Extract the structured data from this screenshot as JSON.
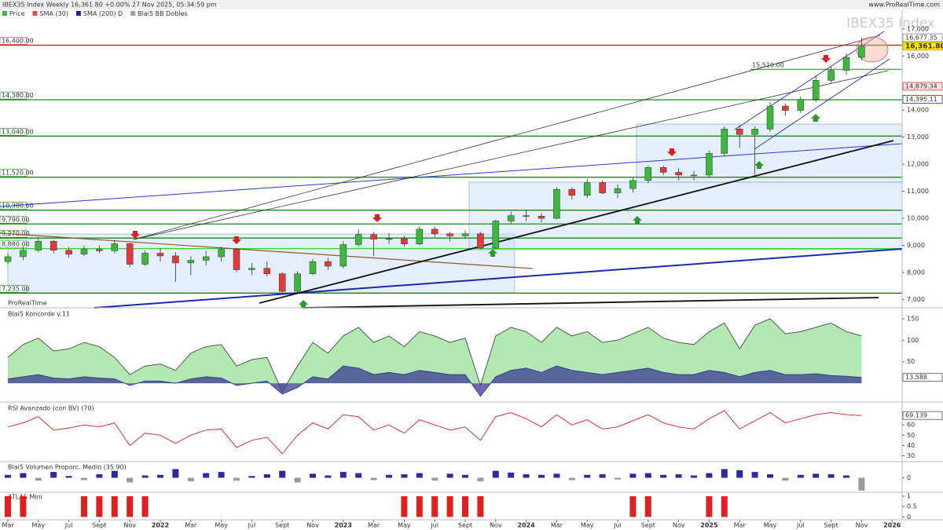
{
  "header": {
    "title": "IBEX35 Index Weekly 16,361.80 +0.00% 27 Nov 2025, 05:34:59 pm",
    "site": "www.ProRealTime.com",
    "branding": "ProRealTime"
  },
  "chart_data": [
    {
      "type": "candlestick",
      "title": "IBEX35 Index",
      "x": [
        "2021-03",
        "2021-04",
        "2021-05",
        "2021-06",
        "2021-07",
        "2021-08",
        "2021-09",
        "2021-10",
        "2021-11",
        "2021-12",
        "2022-01",
        "2022-02",
        "2022-03",
        "2022-04",
        "2022-05",
        "2022-06",
        "2022-07",
        "2022-08",
        "2022-09",
        "2022-10",
        "2022-11",
        "2022-12",
        "2023-01",
        "2023-02",
        "2023-03",
        "2023-04",
        "2023-05",
        "2023-06",
        "2023-07",
        "2023-08",
        "2023-09",
        "2023-10",
        "2023-11",
        "2023-12",
        "2024-01",
        "2024-02",
        "2024-03",
        "2024-04",
        "2024-05",
        "2024-06",
        "2024-07",
        "2024-08",
        "2024-09",
        "2024-10",
        "2024-11",
        "2024-12",
        "2025-01",
        "2025-02",
        "2025-03",
        "2025-04",
        "2025-05",
        "2025-06",
        "2025-07",
        "2025-08",
        "2025-09",
        "2025-10",
        "2025-11"
      ],
      "open": [
        8400,
        8580,
        8815,
        9150,
        8820,
        8675,
        8850,
        8800,
        9060,
        8300,
        8710,
        8610,
        8350,
        8450,
        8580,
        8850,
        8100,
        8150,
        7950,
        7300,
        7950,
        8400,
        8230,
        9030,
        9400,
        9230,
        9250,
        9050,
        9600,
        9430,
        9350,
        9430,
        8900,
        9900,
        10100,
        10080,
        10000,
        11070,
        10850,
        11320,
        10940,
        11100,
        11400,
        11880,
        11700,
        11600,
        11600,
        12400,
        13300,
        13100,
        13300,
        14150,
        13990,
        14400,
        15100,
        15470,
        15950
      ],
      "high": [
        8700,
        8950,
        9300,
        9200,
        8950,
        9000,
        9000,
        9200,
        9100,
        8800,
        8900,
        8750,
        8600,
        8800,
        8950,
        8900,
        8350,
        8400,
        8000,
        8050,
        8500,
        8550,
        9150,
        9600,
        9500,
        9450,
        9350,
        9700,
        9700,
        9500,
        9550,
        9500,
        9950,
        10250,
        10300,
        10200,
        11150,
        11150,
        11450,
        11400,
        11250,
        11500,
        11950,
        11950,
        11850,
        11750,
        12500,
        13400,
        13450,
        13400,
        14300,
        14250,
        14500,
        15300,
        15600,
        16100,
        16677.35
      ],
      "low": [
        8300,
        8450,
        8750,
        8700,
        8550,
        8600,
        8700,
        8700,
        8200,
        8250,
        8400,
        7650,
        7900,
        8250,
        8400,
        8000,
        7900,
        7850,
        7250,
        7200,
        7900,
        8100,
        8150,
        8950,
        8600,
        9050,
        8950,
        9000,
        9300,
        9150,
        9250,
        8850,
        8850,
        9800,
        9900,
        9850,
        9950,
        10700,
        10750,
        10900,
        10750,
        10950,
        11300,
        11600,
        11400,
        11400,
        11500,
        12300,
        12600,
        11600,
        13200,
        13800,
        13900,
        14300,
        15000,
        15300,
        15850
      ],
      "close": [
        8580,
        8815,
        9150,
        8820,
        8675,
        8850,
        8800,
        9060,
        8300,
        8710,
        8610,
        8350,
        8450,
        8580,
        8850,
        8100,
        8150,
        7950,
        7300,
        7950,
        8400,
        8230,
        9030,
        9400,
        9230,
        9250,
        9050,
        9600,
        9430,
        9350,
        9430,
        8900,
        9900,
        10100,
        10080,
        10000,
        11070,
        10850,
        11320,
        10940,
        11100,
        11400,
        11880,
        11700,
        11600,
        11600,
        12400,
        13300,
        13100,
        13300,
        14150,
        13990,
        14400,
        15100,
        15470,
        15950,
        16361.8
      ],
      "up_color": "#3cb83c",
      "down_color": "#e23a3a",
      "ylim": [
        6750,
        17200
      ],
      "yticks": [
        {
          "value": 7000,
          "label": "7,000"
        },
        {
          "value": 8000,
          "label": "8,000"
        },
        {
          "value": 9000,
          "label": "9,000"
        },
        {
          "value": 10000,
          "label": "10,000"
        },
        {
          "value": 11000,
          "label": "11,000"
        },
        {
          "value": 12000,
          "label": "12,000"
        },
        {
          "value": 13000,
          "label": "13,000"
        },
        {
          "value": 14000,
          "label": "14,000"
        },
        {
          "value": 16000,
          "label": "16,000"
        },
        {
          "value": 17000,
          "label": "17,000"
        }
      ],
      "xticks": [
        {
          "value": "2021-03",
          "label": "Mar"
        },
        {
          "value": "2021-05",
          "label": "May"
        },
        {
          "value": "2021-07",
          "label": "Jul"
        },
        {
          "value": "2021-09",
          "label": "Sept"
        },
        {
          "value": "2021-11",
          "label": "Nov"
        },
        {
          "value": "2022-01",
          "label": "2022"
        },
        {
          "value": "2022-03",
          "label": "Mar"
        },
        {
          "value": "2022-05",
          "label": "May"
        },
        {
          "value": "2022-07",
          "label": "Jul"
        },
        {
          "value": "2022-09",
          "label": "Sept"
        },
        {
          "value": "2022-11",
          "label": "Nov"
        },
        {
          "value": "2023-01",
          "label": "2023"
        },
        {
          "value": "2023-03",
          "label": "Mar"
        },
        {
          "value": "2023-05",
          "label": "May"
        },
        {
          "value": "2023-07",
          "label": "Jul"
        },
        {
          "value": "2023-09",
          "label": "Sept"
        },
        {
          "value": "2023-11",
          "label": "Nov"
        },
        {
          "value": "2024-01",
          "label": "2024"
        },
        {
          "value": "2024-03",
          "label": "Mar"
        },
        {
          "value": "2024-05",
          "label": "May"
        },
        {
          "value": "2024-07",
          "label": "Jul"
        },
        {
          "value": "2024-09",
          "label": "Sept"
        },
        {
          "value": "2024-11",
          "label": "Nov"
        },
        {
          "value": "2025-01",
          "label": "2025"
        },
        {
          "value": "2025-03",
          "label": "Mar"
        },
        {
          "value": "2025-05",
          "label": "May"
        },
        {
          "value": "2025-07",
          "label": "Jul"
        },
        {
          "value": "2025-09",
          "label": "Sept"
        },
        {
          "value": "2025-11",
          "label": "Nov"
        },
        {
          "value": "2026-01",
          "label": "2026"
        }
      ],
      "levels": [
        {
          "value": 16400,
          "label": "16,400.00",
          "color": "#d42020"
        },
        {
          "value": 14380,
          "label": "14,380.00",
          "color": "#1a8a1a"
        },
        {
          "value": 13040,
          "label": "13,040.00",
          "color": "#1a8a1a"
        },
        {
          "value": 11520,
          "label": "11,520.00",
          "color": "#1a8a1a"
        },
        {
          "value": 10300,
          "label": "10,300.00",
          "color": "#1a8a1a"
        },
        {
          "value": 9790,
          "label": "9,790.00",
          "color": "#1a8a1a"
        },
        {
          "value": 9270,
          "label": "9,270.00",
          "color": "#1a8a1a"
        },
        {
          "value": 8880,
          "label": "8,880.00",
          "color": "#38d038"
        },
        {
          "value": 7235,
          "label": "7,235.00",
          "color": "#1a8a1a"
        }
      ],
      "annotation": {
        "value": 15510,
        "label": "15,510.00",
        "color": "#1a8a1a"
      },
      "price_tags": [
        {
          "value": 16677.35,
          "label": "16,677.35",
          "color": "#888888",
          "bg": "#ffffff"
        },
        {
          "value": 16361.8,
          "label": "16,361.80",
          "color": "#c8a000",
          "bg": "#ffe800"
        },
        {
          "value": 14879.34,
          "label": "14,879.34",
          "color": "#d04040",
          "bg": "#ffe0e0"
        },
        {
          "value": 14395.11,
          "label": "14,395.11",
          "color": "#3030b0",
          "bg": "#ffffff"
        }
      ],
      "legend": [
        {
          "name": "Price",
          "color": "#3cb83c"
        },
        {
          "name": "SMA (30)",
          "color": "#e05050"
        },
        {
          "name": "SMA (200) D",
          "color": "#2020a0"
        },
        {
          "name": "Blai5 BB Dobles",
          "color": "#a0a0a0"
        }
      ]
    },
    {
      "type": "area",
      "title": "Blai5 Koncorde v.11",
      "ylim": [
        -40,
        170
      ],
      "yticks": [
        50,
        100,
        150
      ],
      "series": [
        {
          "color": "#22c022",
          "values": [
            60,
            90,
            105,
            75,
            80,
            95,
            85,
            60,
            20,
            40,
            45,
            30,
            70,
            85,
            90,
            40,
            55,
            60,
            -20,
            40,
            95,
            70,
            110,
            130,
            95,
            110,
            85,
            120,
            110,
            95,
            105,
            -5,
            110,
            130,
            120,
            95,
            130,
            110,
            120,
            95,
            100,
            115,
            130,
            105,
            95,
            90,
            120,
            140,
            80,
            135,
            150,
            115,
            120,
            130,
            140,
            120,
            110
          ]
        },
        {
          "color": "#3a3a90",
          "values": [
            10,
            15,
            20,
            12,
            10,
            15,
            12,
            10,
            -5,
            5,
            5,
            0,
            10,
            15,
            12,
            -5,
            0,
            5,
            -25,
            -10,
            15,
            10,
            40,
            35,
            20,
            25,
            20,
            30,
            25,
            20,
            20,
            -30,
            15,
            30,
            35,
            25,
            40,
            30,
            25,
            20,
            25,
            30,
            35,
            25,
            20,
            20,
            30,
            25,
            15,
            25,
            30,
            20,
            20,
            22,
            18,
            16,
            13.588
          ]
        }
      ]
    },
    {
      "type": "line",
      "title": "RSI Avanzado (con BV) (70)",
      "ylim": [
        25,
        80
      ],
      "yticks": [
        30,
        40,
        50,
        60,
        70
      ],
      "series": [
        {
          "color": "#e03030",
          "values": [
            58,
            62,
            68,
            55,
            57,
            60,
            58,
            62,
            40,
            52,
            50,
            42,
            50,
            55,
            56,
            38,
            45,
            48,
            32,
            50,
            62,
            56,
            70,
            68,
            55,
            60,
            52,
            65,
            60,
            55,
            58,
            45,
            68,
            72,
            66,
            58,
            70,
            60,
            65,
            56,
            58,
            64,
            70,
            62,
            58,
            56,
            66,
            74,
            56,
            64,
            72,
            62,
            66,
            70,
            72,
            70,
            69.139
          ]
        }
      ]
    },
    {
      "type": "bar",
      "title": "Blai5 Volumen Proporc. Medio (35 90)",
      "ylim": [
        -2.5,
        2.5
      ],
      "yticks": [
        0
      ],
      "series": [
        {
          "color": "#2a2aa8",
          "negative_color": "#9a9a9a",
          "values": [
            0.5,
            0.8,
            -0.5,
            1.0,
            0.3,
            -0.4,
            0.6,
            1.2,
            -0.8,
            0.4,
            0.5,
            1.5,
            -0.6,
            0.8,
            1.0,
            -0.5,
            0.3,
            0.6,
            1.2,
            -0.8,
            0.7,
            0.4,
            1.0,
            0.8,
            -0.4,
            0.5,
            0.6,
            0.8,
            -0.5,
            0.7,
            0.5,
            -0.6,
            1.2,
            0.9,
            0.6,
            0.5,
            0.7,
            -0.4,
            0.5,
            0.6,
            -0.3,
            0.7,
            0.8,
            0.5,
            0.6,
            0.4,
            0.8,
            1.5,
            1.3,
            1.0,
            0.6,
            -0.5,
            0.5,
            0.7,
            0.6,
            0.4,
            -2.2
          ]
        }
      ]
    },
    {
      "type": "bar",
      "title": "ATLAS Mini",
      "ylim": [
        -0.1,
        1.15
      ],
      "yticks": [
        0,
        0.5,
        1
      ],
      "series": [
        {
          "color": "#e02020",
          "negative_color": "#e02020",
          "values": [
            1,
            1,
            0,
            0,
            0,
            1,
            1,
            1,
            1,
            1,
            0,
            0,
            0,
            0,
            0,
            0,
            0,
            0,
            0,
            0,
            0,
            0,
            0,
            0,
            0,
            0,
            1,
            1,
            1,
            1,
            1,
            1,
            0,
            0,
            0,
            0,
            0,
            0,
            0,
            0,
            0,
            1,
            1,
            0,
            0,
            0,
            1,
            1,
            0,
            0,
            0,
            0,
            0,
            0,
            0,
            0,
            0
          ]
        }
      ]
    }
  ]
}
